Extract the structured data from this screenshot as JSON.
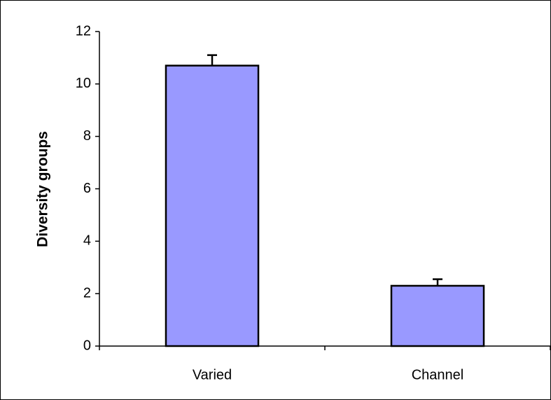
{
  "chart_data": {
    "type": "bar",
    "y_label": "Diversity groups",
    "categories": [
      "Varied",
      "Channel"
    ],
    "values": [
      10.7,
      2.3
    ],
    "errors": [
      0.4,
      0.25
    ],
    "color": "#9999ff",
    "ylim": [
      0,
      12
    ],
    "yticks": [
      0,
      2,
      4,
      6,
      8,
      10,
      12
    ],
    "grid": false
  }
}
